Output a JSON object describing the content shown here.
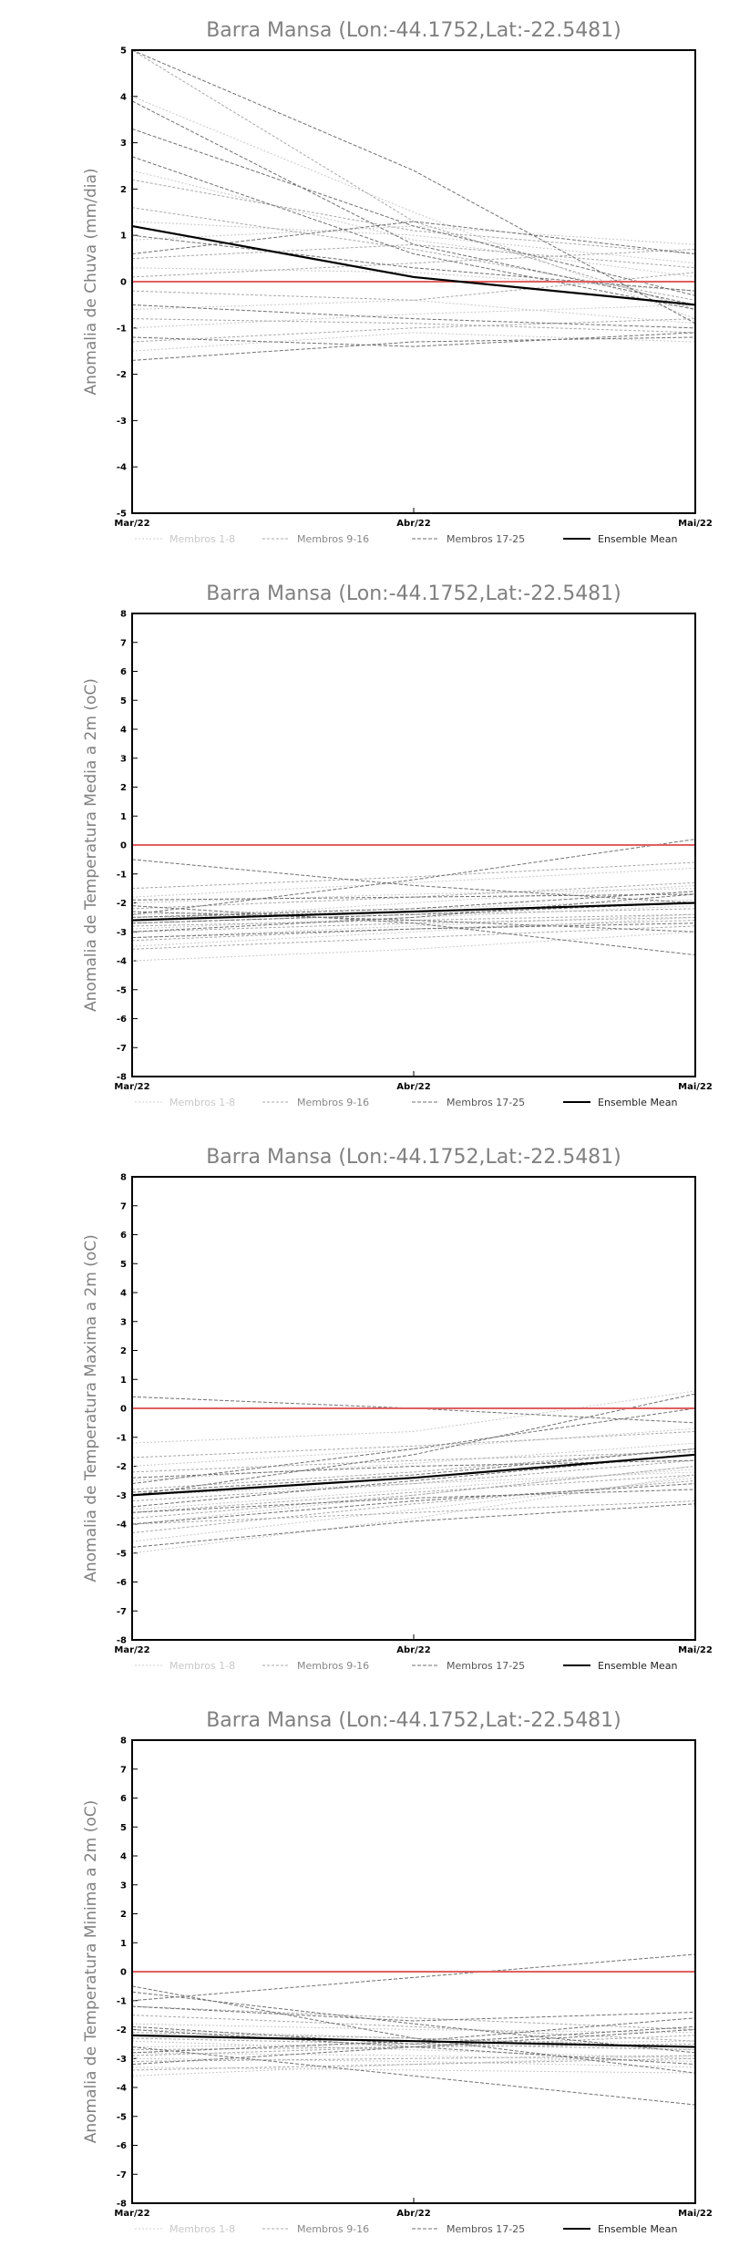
{
  "chart_data": [
    {
      "type": "line",
      "title": "Barra Mansa (Lon:-44.1752,Lat:-22.5481)",
      "xlabel": "",
      "ylabel": "Anomalia de Chuva (mm/dia)",
      "categories": [
        "Mar/22",
        "Abr/22",
        "Mai/22"
      ],
      "ylim": [
        -5,
        5
      ],
      "yticks": [
        5,
        4,
        3,
        2,
        1,
        0,
        -1,
        -2,
        -3,
        -4,
        -5
      ],
      "zero_line_color": "#e06060",
      "legend": [
        "Membros 1-8",
        "Membros 9-16",
        "Membros 17-25",
        "Ensemble Mean"
      ],
      "ensemble_mean": [
        1.2,
        0.1,
        -0.5
      ],
      "members_1_8": [
        [
          4.0,
          1.5,
          -0.8
        ],
        [
          1.3,
          1.0,
          0.4
        ],
        [
          0.3,
          0.2,
          -0.2
        ],
        [
          -0.6,
          -0.4,
          -0.9
        ],
        [
          -1.0,
          -0.7,
          -0.5
        ],
        [
          2.4,
          0.9,
          0.1
        ],
        [
          0.9,
          1.2,
          0.8
        ],
        [
          -1.5,
          -1.1,
          -1.3
        ]
      ],
      "members_9_16": [
        [
          5.0,
          1.3,
          -0.6
        ],
        [
          2.2,
          1.1,
          0.6
        ],
        [
          0.5,
          0.8,
          0.3
        ],
        [
          -0.2,
          -0.4,
          0.2
        ],
        [
          -1.3,
          -1.0,
          -0.8
        ],
        [
          1.6,
          0.7,
          -0.4
        ],
        [
          -0.8,
          -0.9,
          -1.1
        ],
        [
          0.1,
          0.4,
          0.7
        ]
      ],
      "members_17_25": [
        [
          5.0,
          2.4,
          -0.9
        ],
        [
          3.9,
          0.8,
          -0.5
        ],
        [
          3.3,
          1.2,
          -0.3
        ],
        [
          2.7,
          0.6,
          -0.6
        ],
        [
          -0.5,
          -0.8,
          -1.0
        ],
        [
          -1.7,
          -1.3,
          -1.2
        ],
        [
          0.6,
          1.3,
          0.6
        ],
        [
          1.0,
          0.3,
          -0.2
        ],
        [
          -1.2,
          -1.4,
          -1.1
        ]
      ]
    },
    {
      "type": "line",
      "title": "Barra Mansa (Lon:-44.1752,Lat:-22.5481)",
      "xlabel": "",
      "ylabel": "Anomalia de Temperatura Media a 2m (oC)",
      "categories": [
        "Mar/22",
        "Abr/22",
        "Mai/22"
      ],
      "ylim": [
        -8,
        8
      ],
      "yticks": [
        8,
        7,
        6,
        5,
        4,
        3,
        2,
        1,
        0,
        -1,
        -2,
        -3,
        -4,
        -5,
        -6,
        -7,
        -8
      ],
      "zero_line_color": "#e06060",
      "legend": [
        "Membros 1-8",
        "Membros 9-16",
        "Membros 17-25",
        "Ensemble Mean"
      ],
      "ensemble_mean": [
        -2.6,
        -2.3,
        -2.0
      ],
      "members_1_8": [
        [
          -4.0,
          -3.6,
          -3.0
        ],
        [
          -3.2,
          -2.8,
          -2.4
        ],
        [
          -2.9,
          -2.5,
          -2.1
        ],
        [
          -2.6,
          -2.0,
          -1.4
        ],
        [
          -2.0,
          -1.7,
          -1.5
        ],
        [
          -3.5,
          -3.0,
          -2.5
        ],
        [
          -2.4,
          -2.2,
          -1.9
        ],
        [
          -1.8,
          -1.3,
          -0.8
        ]
      ],
      "members_9_16": [
        [
          -3.0,
          -2.7,
          -2.5
        ],
        [
          -2.7,
          -2.4,
          -2.2
        ],
        [
          -2.2,
          -1.8,
          -1.3
        ],
        [
          -3.6,
          -3.2,
          -2.8
        ],
        [
          -2.5,
          -2.3,
          -2.0
        ],
        [
          -1.5,
          -1.1,
          -0.6
        ],
        [
          -3.3,
          -2.9,
          -2.6
        ],
        [
          -2.8,
          -2.6,
          -2.4
        ]
      ],
      "members_17_25": [
        [
          -0.5,
          -1.4,
          -2.0
        ],
        [
          -2.4,
          -1.2,
          0.2
        ],
        [
          -2.1,
          -2.7,
          -3.8
        ],
        [
          -3.0,
          -2.5,
          -1.7
        ],
        [
          -2.7,
          -2.4,
          -2.0
        ],
        [
          -2.3,
          -2.6,
          -3.0
        ],
        [
          -3.2,
          -2.9,
          -2.7
        ],
        [
          -1.9,
          -1.8,
          -1.7
        ],
        [
          -2.5,
          -2.2,
          -1.6
        ]
      ]
    },
    {
      "type": "line",
      "title": "Barra Mansa (Lon:-44.1752,Lat:-22.5481)",
      "xlabel": "",
      "ylabel": "Anomalia de Temperatura Maxima a 2m (oC)",
      "categories": [
        "Mar/22",
        "Abr/22",
        "Mai/22"
      ],
      "ylim": [
        -8,
        8
      ],
      "yticks": [
        8,
        7,
        6,
        5,
        4,
        3,
        2,
        1,
        0,
        -1,
        -2,
        -3,
        -4,
        -5,
        -6,
        -7,
        -8
      ],
      "zero_line_color": "#e06060",
      "legend": [
        "Membros 1-8",
        "Membros 9-16",
        "Membros 17-25",
        "Ensemble Mean"
      ],
      "ensemble_mean": [
        -3.0,
        -2.4,
        -1.6
      ],
      "members_1_8": [
        [
          -5.0,
          -3.8,
          -2.3
        ],
        [
          -4.0,
          -3.0,
          -2.0
        ],
        [
          -3.5,
          -2.8,
          -2.1
        ],
        [
          -1.2,
          -0.8,
          0.6
        ],
        [
          -2.0,
          -1.4,
          -0.7
        ],
        [
          -4.6,
          -3.5,
          -2.4
        ],
        [
          -3.0,
          -2.6,
          -2.2
        ],
        [
          -2.5,
          -1.9,
          -1.2
        ]
      ],
      "members_9_16": [
        [
          -3.8,
          -3.0,
          -2.0
        ],
        [
          -1.7,
          -1.3,
          -0.8
        ],
        [
          -4.3,
          -3.3,
          -2.5
        ],
        [
          -3.2,
          -2.6,
          -1.8
        ],
        [
          -2.2,
          -1.8,
          -1.5
        ],
        [
          -4.0,
          -3.6,
          -3.2
        ],
        [
          -2.8,
          -2.2,
          -1.4
        ],
        [
          -3.6,
          -2.9,
          -2.3
        ]
      ],
      "members_17_25": [
        [
          0.4,
          0.0,
          -0.5
        ],
        [
          -3.0,
          -1.6,
          0.5
        ],
        [
          -2.6,
          -1.4,
          0.0
        ],
        [
          -3.4,
          -2.5,
          -1.6
        ],
        [
          -4.0,
          -3.2,
          -2.6
        ],
        [
          -2.4,
          -2.0,
          -1.8
        ],
        [
          -3.6,
          -3.1,
          -2.8
        ],
        [
          -4.8,
          -3.9,
          -3.3
        ],
        [
          -2.9,
          -2.3,
          -1.4
        ]
      ]
    },
    {
      "type": "line",
      "title": "Barra Mansa (Lon:-44.1752,Lat:-22.5481)",
      "xlabel": "",
      "ylabel": "Anomalia de Temperatura Minima a 2m (oC)",
      "categories": [
        "Mar/22",
        "Abr/22",
        "Mai/22"
      ],
      "ylim": [
        -8,
        8
      ],
      "yticks": [
        8,
        7,
        6,
        5,
        4,
        3,
        2,
        1,
        0,
        -1,
        -2,
        -3,
        -4,
        -5,
        -6,
        -7,
        -8
      ],
      "zero_line_color": "#e06060",
      "legend": [
        "Membros 1-8",
        "Membros 9-16",
        "Membros 17-25",
        "Ensemble Mean"
      ],
      "ensemble_mean": [
        -2.2,
        -2.4,
        -2.6
      ],
      "members_1_8": [
        [
          -3.6,
          -3.2,
          -2.9
        ],
        [
          -3.0,
          -3.1,
          -3.3
        ],
        [
          -2.6,
          -2.5,
          -2.4
        ],
        [
          -2.0,
          -2.3,
          -2.7
        ],
        [
          -3.3,
          -3.4,
          -3.5
        ],
        [
          -1.8,
          -2.0,
          -2.1
        ],
        [
          -2.8,
          -2.9,
          -3.1
        ],
        [
          -2.4,
          -2.7,
          -3.0
        ]
      ],
      "members_9_16": [
        [
          -1.5,
          -1.9,
          -2.4
        ],
        [
          -2.9,
          -2.6,
          -2.2
        ],
        [
          -3.4,
          -3.2,
          -3.0
        ],
        [
          -2.1,
          -2.3,
          -2.6
        ],
        [
          -1.2,
          -1.6,
          -2.0
        ],
        [
          -2.7,
          -2.6,
          -2.5
        ],
        [
          -3.1,
          -3.0,
          -2.9
        ],
        [
          -2.3,
          -2.5,
          -2.7
        ]
      ],
      "members_17_25": [
        [
          -0.5,
          -2.3,
          -3.5
        ],
        [
          -1.0,
          -0.2,
          0.6
        ],
        [
          -2.6,
          -3.6,
          -4.6
        ],
        [
          -1.2,
          -1.7,
          -1.4
        ],
        [
          -2.8,
          -2.4,
          -1.6
        ],
        [
          -2.0,
          -2.6,
          -3.2
        ],
        [
          -3.2,
          -2.6,
          -2.0
        ],
        [
          -0.7,
          -1.8,
          -2.8
        ],
        [
          -1.9,
          -2.5,
          -1.9
        ]
      ]
    }
  ]
}
